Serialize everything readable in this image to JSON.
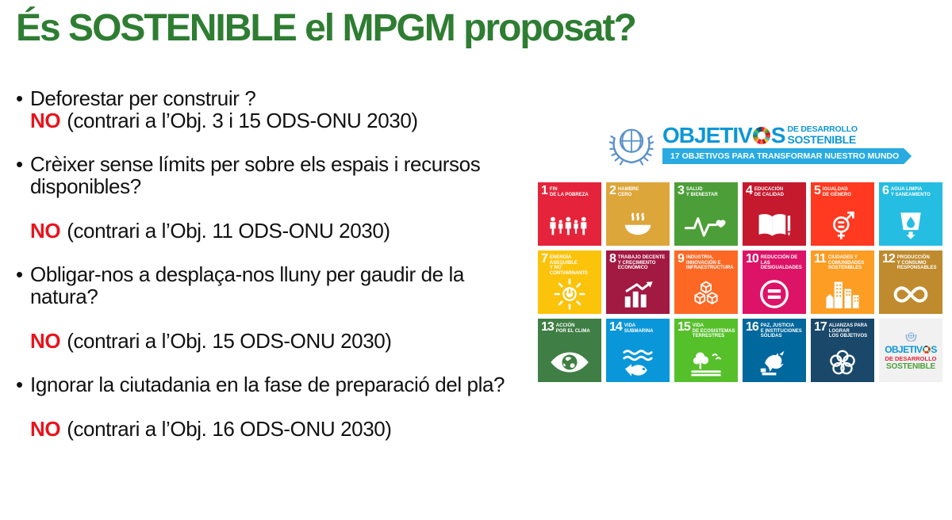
{
  "title": "És SOSTENIBLE el MPGM proposat?",
  "colors": {
    "title_green": "#2e7d32",
    "no_red": "#e8131c",
    "logo_blue": "#0d97d6",
    "banner_blue": "#29abe2",
    "un_blue": "#5b92c9",
    "text_black": "#111111",
    "logo_tile_bg": "#f1f1f2",
    "logo_de_desarrollo_red": "#e5243b",
    "logo_sostenible_green": "#4c9f38"
  },
  "bullets": [
    {
      "lines": [
        "Deforestar per construir ?"
      ],
      "no": "NO",
      "rest": "(contrari a l’Obj. 3 i 15 ODS-ONU 2030)",
      "spaced": false
    },
    {
      "lines": [
        "Crèixer sense límits per sobre els espais i recursos",
        "disponibles?"
      ],
      "no": "NO",
      "rest": "(contrari a l’Obj. 11 ODS-ONU 2030)",
      "spaced": true
    },
    {
      "lines": [
        "Obligar-nos a desplaça-nos lluny per gaudir de la",
        "natura?"
      ],
      "no": "NO",
      "rest": "(contrari a l’Obj. 15 ODS-ONU 2030)",
      "spaced": true
    },
    {
      "lines": [
        "Ignorar la ciutadania en la fase de preparació del pla?"
      ],
      "no": "NO",
      "rest": "(contrari a l’Obj. 16 ODS-ONU 2030)",
      "spaced": true
    }
  ],
  "sdg_header": {
    "main_pre": "OBJETIV",
    "main_post": "S",
    "sub1": "DE DESARROLLO",
    "sub2": "SOSTENIBLE",
    "banner": "17 OBJETIVOS PARA TRANSFORMAR NUESTRO MUNDO"
  },
  "sdg": {
    "tiles": [
      {
        "n": "1",
        "lines": [
          "FIN",
          "DE LA POBREZA"
        ],
        "color": "#e5243b",
        "icon": "people-icon"
      },
      {
        "n": "2",
        "lines": [
          "HAMBRE",
          "CERO"
        ],
        "color": "#dda63a",
        "icon": "bowl-icon"
      },
      {
        "n": "3",
        "lines": [
          "SALUD",
          "Y BIENESTAR"
        ],
        "color": "#4c9f38",
        "icon": "heartbeat-icon"
      },
      {
        "n": "4",
        "lines": [
          "EDUCACIÓN",
          "DE CALIDAD"
        ],
        "color": "#c5192d",
        "icon": "book-icon"
      },
      {
        "n": "5",
        "lines": [
          "IGUALDAD",
          "DE GÉNERO"
        ],
        "color": "#ff3a21",
        "icon": "gender-icon"
      },
      {
        "n": "6",
        "lines": [
          "AGUA LIMPIA",
          "Y SANEAMIENTO"
        ],
        "color": "#26bde2",
        "icon": "water-icon"
      },
      {
        "n": "7",
        "lines": [
          "ENERGÍA ASEQUIBLE",
          "Y NO CONTAMINANTE"
        ],
        "color": "#fcc30b",
        "icon": "energy-icon"
      },
      {
        "n": "8",
        "lines": [
          "TRABAJO DECENTE",
          "Y CRECIMIENTO",
          "ECONÓMICO"
        ],
        "color": "#a21942",
        "icon": "growth-icon"
      },
      {
        "n": "9",
        "lines": [
          "INDUSTRIA,",
          "INNOVACIÓN E",
          "INFRAESTRUCTURA"
        ],
        "color": "#fd6925",
        "icon": "cubes-icon"
      },
      {
        "n": "10",
        "lines": [
          "REDUCCIÓN DE LAS",
          "DESIGUALDADES"
        ],
        "color": "#dd1367",
        "icon": "equality-icon"
      },
      {
        "n": "11",
        "lines": [
          "CIUDADES Y",
          "COMUNIDADES",
          "SOSTENIBLES"
        ],
        "color": "#fd9d24",
        "icon": "city-icon"
      },
      {
        "n": "12",
        "lines": [
          "PRODUCCIÓN",
          "Y CONSUMO",
          "RESPONSABLES"
        ],
        "color": "#bf8b2e",
        "icon": "infinity-icon"
      },
      {
        "n": "13",
        "lines": [
          "ACCIÓN",
          "POR EL CLIMA"
        ],
        "color": "#3f7e44",
        "icon": "climate-eye-icon"
      },
      {
        "n": "14",
        "lines": [
          "VIDA",
          "SUBMARINA"
        ],
        "color": "#0a97d9",
        "icon": "fish-icon"
      },
      {
        "n": "15",
        "lines": [
          "VIDA",
          "DE ECOSISTEMAS",
          "TERRESTRES"
        ],
        "color": "#56c02b",
        "icon": "tree-icon"
      },
      {
        "n": "16",
        "lines": [
          "PAZ, JUSTICIA",
          "E INSTITUCIONES",
          "SÓLIDAS"
        ],
        "color": "#00689d",
        "icon": "dove-icon"
      },
      {
        "n": "17",
        "lines": [
          "ALIANZAS PARA",
          "LOGRAR",
          "LOS OBJETIVOS"
        ],
        "color": "#19486a",
        "icon": "rings-icon"
      }
    ],
    "logo_tile": {
      "line1_pre": "OBJETIV",
      "line1_post": "S",
      "line2": "DE DESARROLLO",
      "line3": "SOSTENIBLE"
    }
  }
}
